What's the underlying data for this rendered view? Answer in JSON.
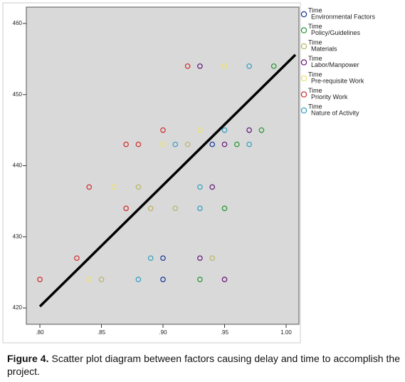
{
  "chart_data": {
    "type": "scatter",
    "xlim": [
      0.789,
      1.0104
    ],
    "ylim": [
      417.7,
      462.3
    ],
    "xticks": [
      {
        "value": 0.8,
        "label": ".80"
      },
      {
        "value": 0.85,
        "label": ".85"
      },
      {
        "value": 0.9,
        "label": ".90"
      },
      {
        "value": 0.95,
        "label": ".95"
      },
      {
        "value": 1.0,
        "label": "1.00"
      }
    ],
    "yticks": [
      420,
      430,
      440,
      450,
      460
    ],
    "series": [
      {
        "variable": "Time",
        "name": "Environmental Factors",
        "color": "#1f3d99",
        "x": [
          0.94,
          0.9,
          0.9
        ],
        "values": [
          443,
          427,
          424
        ]
      },
      {
        "variable": "Time",
        "name": "Policy/Guidelines",
        "color": "#2e9a3c",
        "x": [
          0.99,
          0.98,
          0.96,
          0.95,
          0.93
        ],
        "values": [
          454,
          445,
          443,
          434,
          424
        ]
      },
      {
        "variable": "Time",
        "name": "Materials",
        "color": "#bdb76b",
        "x": [
          0.92,
          0.88,
          0.89,
          0.91,
          0.94,
          0.85
        ],
        "values": [
          443,
          437,
          434,
          434,
          427,
          424
        ]
      },
      {
        "variable": "Time",
        "name": "Labor/Manpower",
        "color": "#6b1f7c",
        "x": [
          0.93,
          0.97,
          0.95,
          0.94,
          0.93,
          0.95
        ],
        "values": [
          454,
          445,
          443,
          437,
          427,
          424
        ]
      },
      {
        "variable": "Time",
        "name": "Pre-requisite Work",
        "color": "#ece46e",
        "x": [
          0.95,
          0.93,
          0.9,
          0.86,
          0.84
        ],
        "values": [
          454,
          445,
          443,
          437,
          424
        ]
      },
      {
        "variable": "Time",
        "name": "Priority Work",
        "color": "#d03535",
        "x": [
          0.92,
          0.9,
          0.87,
          0.88,
          0.84,
          0.87,
          0.83,
          0.8
        ],
        "values": [
          454,
          445,
          443,
          443,
          437,
          434,
          427,
          424
        ]
      },
      {
        "variable": "Time",
        "name": "Nature of Activity",
        "color": "#3aa3c2",
        "x": [
          0.97,
          0.95,
          0.91,
          0.97,
          0.93,
          0.93,
          0.89,
          0.88
        ],
        "values": [
          454,
          445,
          443,
          443,
          437,
          434,
          427,
          424
        ]
      }
    ],
    "fit_line": {
      "x": [
        0.8,
        1.0075
      ],
      "values": [
        420.2,
        455.6
      ]
    },
    "caption": {
      "label": "Figure 4.",
      "text": "Scatter plot diagram between factors causing delay and time to accomplish the project."
    }
  }
}
